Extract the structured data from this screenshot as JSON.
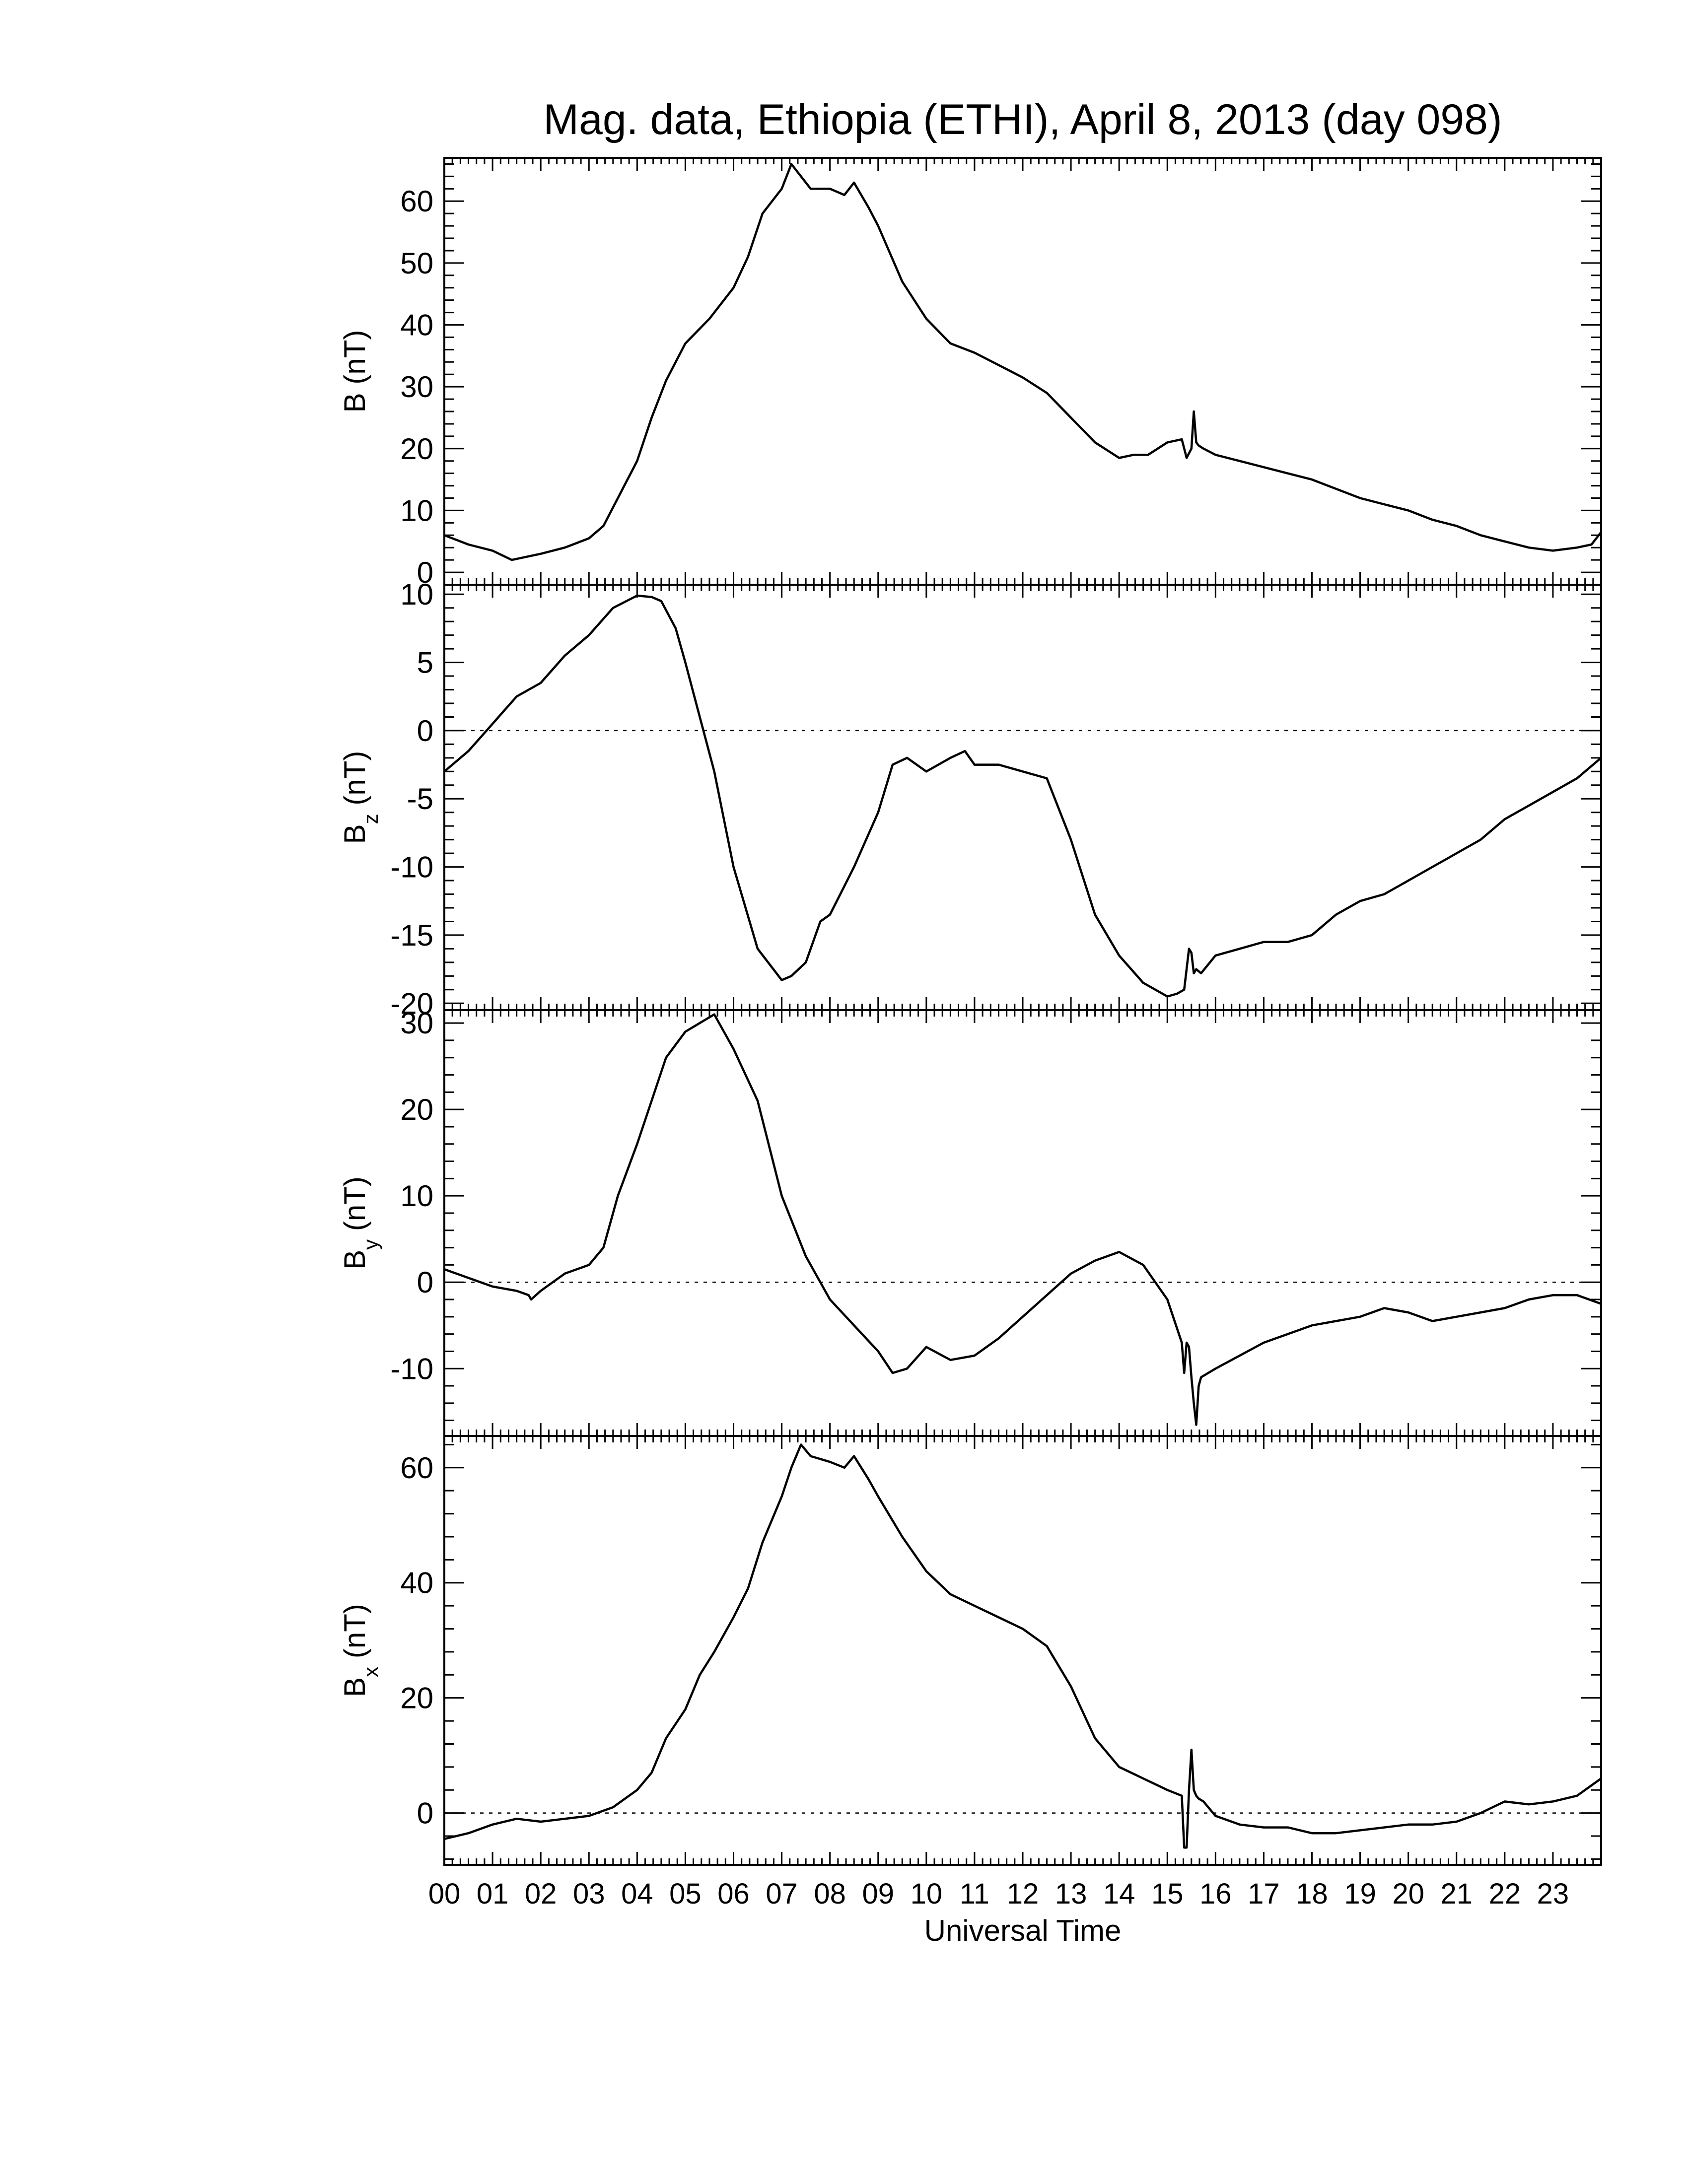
{
  "chart_data": {
    "type": "line",
    "title": "Mag. data, Ethiopia (ETHI), April 8, 2013 (day 098)",
    "xlabel": "Universal Time",
    "xlim": [
      0,
      24
    ],
    "x_tick_labels": [
      "00",
      "01",
      "02",
      "03",
      "04",
      "05",
      "06",
      "07",
      "08",
      "09",
      "10",
      "11",
      "12",
      "13",
      "14",
      "15",
      "16",
      "17",
      "18",
      "19",
      "20",
      "21",
      "22",
      "23"
    ],
    "panels": [
      {
        "name": "B",
        "ylabel": "B (nT)",
        "ylabel_main": "B",
        "ylabel_sub": "",
        "ylabel_unit": " (nT)",
        "ylim": [
          -2,
          67
        ],
        "yticks": [
          0,
          10,
          20,
          30,
          40,
          50,
          60
        ],
        "zero_line": false,
        "x": [
          0,
          0.5,
          1,
          1.4,
          2,
          2.5,
          3,
          3.3,
          3.6,
          4,
          4.3,
          4.6,
          5,
          5.5,
          6,
          6.3,
          6.6,
          7,
          7.2,
          7.4,
          7.6,
          8,
          8.3,
          8.5,
          8.8,
          9,
          9.5,
          10,
          10.5,
          11,
          11.5,
          12,
          12.5,
          13,
          13.5,
          14,
          14.3,
          14.6,
          15,
          15.3,
          15.4,
          15.5,
          15.55,
          15.6,
          15.65,
          15.75,
          16,
          16.5,
          17,
          17.5,
          18,
          18.5,
          19,
          19.5,
          20,
          20.5,
          21,
          21.5,
          22,
          22.5,
          23,
          23.5,
          23.8,
          24
        ],
        "y": [
          6,
          4.5,
          3.5,
          2,
          3,
          4,
          5.5,
          7.5,
          12,
          18,
          25,
          31,
          37,
          41,
          46,
          51,
          58,
          62,
          66,
          64,
          62,
          62,
          61,
          63,
          59,
          56,
          47,
          41,
          37,
          35.5,
          33.5,
          31.5,
          29,
          25,
          21,
          18.5,
          19,
          19,
          21,
          21.5,
          18.5,
          20,
          26,
          21,
          20.5,
          20,
          19,
          18,
          17,
          16,
          15,
          13.5,
          12,
          11,
          10,
          8.5,
          7.5,
          6,
          5,
          4,
          3.5,
          4,
          4.5,
          6.5
        ]
      },
      {
        "name": "Bz",
        "ylabel": "Bz (nT)",
        "ylabel_main": "B",
        "ylabel_sub": "z",
        "ylabel_unit": " (nT)",
        "ylim": [
          -20.5,
          10.7
        ],
        "yticks": [
          -20,
          -15,
          -10,
          -5,
          0,
          5,
          10
        ],
        "zero_line": true,
        "x": [
          0,
          0.5,
          1,
          1.5,
          2,
          2.5,
          3,
          3.5,
          4,
          4.3,
          4.5,
          4.8,
          5,
          5.3,
          5.6,
          6,
          6.5,
          7,
          7.2,
          7.5,
          7.8,
          8,
          8.5,
          9,
          9.3,
          9.6,
          10,
          10.5,
          10.8,
          11,
          11.5,
          12,
          12.5,
          13,
          13.5,
          14,
          14.5,
          15,
          15.2,
          15.35,
          15.45,
          15.5,
          15.55,
          15.6,
          15.7,
          16,
          16.5,
          17,
          17.5,
          18,
          18.5,
          19,
          19.5,
          20,
          20.5,
          21,
          21.5,
          22,
          22.5,
          23,
          23.5,
          24
        ],
        "y": [
          -3,
          -1.5,
          0.5,
          2.5,
          3.5,
          5.5,
          7,
          9,
          9.9,
          9.8,
          9.5,
          7.5,
          5,
          1,
          -3,
          -10,
          -16,
          -18.3,
          -18,
          -17,
          -14,
          -13.5,
          -10,
          -6,
          -2.5,
          -2,
          -3,
          -2,
          -1.5,
          -2.5,
          -2.5,
          -3,
          -3.5,
          -8,
          -13.5,
          -16.5,
          -18.5,
          -19.5,
          -19.3,
          -19,
          -16,
          -16.3,
          -17.8,
          -17.5,
          -17.8,
          -16.5,
          -16,
          -15.5,
          -15.5,
          -15,
          -13.5,
          -12.5,
          -12,
          -11,
          -10,
          -9,
          -8,
          -6.5,
          -5.5,
          -4.5,
          -3.5,
          -2
        ]
      },
      {
        "name": "By",
        "ylabel": "By (nT)",
        "ylabel_main": "B",
        "ylabel_sub": "y",
        "ylabel_unit": " (nT)",
        "ylim": [
          -17.8,
          31.5
        ],
        "yticks": [
          -10,
          0,
          10,
          20,
          30
        ],
        "zero_line": true,
        "x": [
          0,
          0.5,
          1,
          1.5,
          1.75,
          1.8,
          2,
          2.5,
          3,
          3.3,
          3.6,
          4,
          4.3,
          4.6,
          5,
          5.3,
          5.6,
          6,
          6.5,
          7,
          7.5,
          8,
          8.5,
          9,
          9.3,
          9.6,
          10,
          10.5,
          11,
          11.5,
          12,
          12.5,
          13,
          13.5,
          14,
          14.5,
          15,
          15.3,
          15.35,
          15.4,
          15.45,
          15.5,
          15.55,
          15.6,
          15.65,
          15.7,
          16,
          16.5,
          17,
          17.5,
          18,
          18.5,
          19,
          19.5,
          20,
          20.5,
          21,
          21.5,
          22,
          22.5,
          23,
          23.5,
          24
        ],
        "y": [
          1.5,
          0.5,
          -0.5,
          -1,
          -1.5,
          -2,
          -1,
          1,
          2,
          4,
          10,
          16,
          21,
          26,
          29,
          30,
          31,
          27,
          21,
          10,
          3,
          -2,
          -5,
          -8,
          -10.5,
          -10,
          -7.5,
          -9,
          -8.5,
          -6.5,
          -4,
          -1.5,
          1,
          2.5,
          3.5,
          2,
          -2,
          -7,
          -10.5,
          -7,
          -7.5,
          -11,
          -14,
          -16.5,
          -12,
          -11,
          -10,
          -8.5,
          -7,
          -6,
          -5,
          -4.5,
          -4,
          -3,
          -3.5,
          -4.5,
          -4,
          -3.5,
          -3,
          -2,
          -1.5,
          -1.5,
          -2.5
        ]
      },
      {
        "name": "Bx",
        "ylabel": "Bx (nT)",
        "ylabel_main": "B",
        "ylabel_sub": "x",
        "ylabel_unit": " (nT)",
        "ylim": [
          -9,
          65.5
        ],
        "yticks": [
          0,
          20,
          40,
          60
        ],
        "zero_line": true,
        "x": [
          0,
          0.5,
          1,
          1.5,
          2,
          2.5,
          3,
          3.5,
          4,
          4.3,
          4.6,
          5,
          5.3,
          5.6,
          6,
          6.3,
          6.6,
          7,
          7.2,
          7.4,
          7.6,
          8,
          8.3,
          8.5,
          8.8,
          9,
          9.5,
          10,
          10.5,
          11,
          11.5,
          12,
          12.5,
          13,
          13.5,
          14,
          14.5,
          15,
          15.3,
          15.35,
          15.4,
          15.45,
          15.5,
          15.55,
          15.6,
          15.65,
          15.75,
          16,
          16.5,
          17,
          17.5,
          18,
          18.5,
          19,
          19.5,
          20,
          20.5,
          21,
          21.5,
          22,
          22.5,
          23,
          23.5,
          24
        ],
        "y": [
          -4.5,
          -3.5,
          -2,
          -1,
          -1.5,
          -1,
          -0.5,
          1,
          4,
          7,
          13,
          18,
          24,
          28,
          34,
          39,
          47,
          55,
          60,
          64,
          62,
          61,
          60,
          62,
          58,
          55,
          48,
          42,
          38,
          36,
          34,
          32,
          29,
          22,
          13,
          8,
          6,
          4,
          3,
          -6,
          -6,
          4,
          11,
          4,
          3,
          2.5,
          2,
          -0.5,
          -2,
          -2.5,
          -2.5,
          -3.5,
          -3.5,
          -3,
          -2.5,
          -2,
          -2,
          -1.5,
          0,
          2,
          1.5,
          2,
          3,
          6
        ]
      }
    ]
  }
}
